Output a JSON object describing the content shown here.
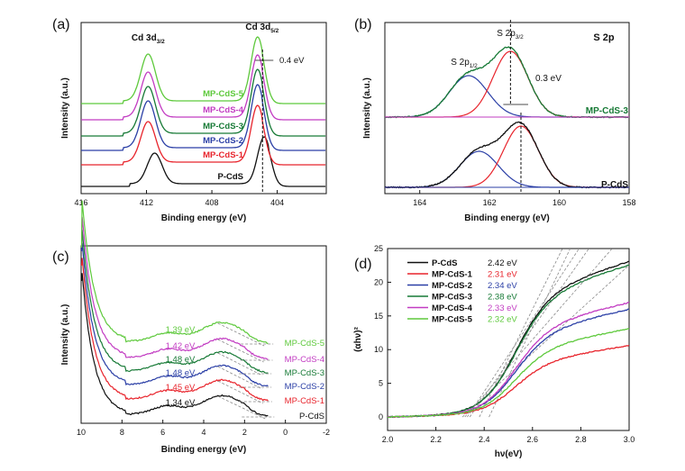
{
  "figure": {
    "colors": {
      "black": "#111111",
      "red": "#e8242c",
      "blue": "#2b3fa6",
      "darkgreen": "#177a36",
      "magenta": "#c23cc2",
      "lightgreen": "#5ec93c",
      "gray": "#777777"
    }
  },
  "chart_data": [
    {
      "panel": "(a)",
      "type": "line",
      "xlabel": "Binding energy (eV)",
      "ylabel": "Intensity (a.u.)",
      "xlim": [
        416,
        401
      ],
      "x_reversed": true,
      "xticks": [
        "416",
        "412",
        "408",
        "404"
      ],
      "xtick_values": [
        416,
        412,
        408,
        404
      ],
      "peaks": [
        {
          "label": "Cd 3d",
          "sub": "3/2",
          "position": 411.9
        },
        {
          "label": "Cd 3d",
          "sub": "5/2",
          "position": 405.2
        }
      ],
      "shift_label": "0.4 eV",
      "reference_line_x": 404.9,
      "series": [
        {
          "name": "P-CdS",
          "color": "#111111",
          "offset": 0,
          "peaks": [
            411.5,
            404.8
          ],
          "heights": [
            34,
            52
          ]
        },
        {
          "name": "MP-CdS-1",
          "color": "#e8242c",
          "offset": 24,
          "peaks": [
            411.9,
            405.2
          ],
          "heights": [
            45,
            63
          ]
        },
        {
          "name": "MP-CdS-2",
          "color": "#2b3fa6",
          "offset": 40,
          "peaks": [
            411.9,
            405.2
          ],
          "heights": [
            52,
            70
          ]
        },
        {
          "name": "MP-CdS-3",
          "color": "#177a36",
          "offset": 56,
          "peaks": [
            411.9,
            405.2
          ],
          "heights": [
            52,
            71
          ]
        },
        {
          "name": "MP-CdS-4",
          "color": "#c23cc2",
          "offset": 74,
          "peaks": [
            411.9,
            405.2
          ],
          "heights": [
            50,
            69
          ]
        },
        {
          "name": "MP-CdS-5",
          "color": "#5ec93c",
          "offset": 92,
          "peaks": [
            411.9,
            405.2
          ],
          "heights": [
            52,
            71
          ]
        }
      ]
    },
    {
      "panel": "(b)",
      "type": "line",
      "title": "S 2p",
      "xlabel": "Binding energy (eV)",
      "ylabel": "Intensity (a.u.)",
      "xlim": [
        165,
        158
      ],
      "x_reversed": true,
      "xticks": [
        "164",
        "162",
        "160",
        "158"
      ],
      "xtick_values": [
        164,
        162,
        160,
        158
      ],
      "annotations": [
        {
          "label": "S 2p",
          "sub": "1/2"
        },
        {
          "label": "S 2p",
          "sub": "3/2"
        }
      ],
      "shift_label": "0.3 eV",
      "series": [
        {
          "name": "MP-CdS-3",
          "color": "#177a36",
          "fit_peaks": [
            161.4,
            162.6
          ],
          "fit_heights": [
            73,
            46
          ]
        },
        {
          "name": "P-CdS",
          "color": "#111111",
          "fit_peaks": [
            161.1,
            162.3
          ],
          "fit_heights": [
            68,
            40
          ]
        }
      ],
      "fit_colors": {
        "S 2p3/2": "#e8242c",
        "S 2p1/2": "#2b3fa6",
        "baseline": "#c23cc2"
      }
    },
    {
      "panel": "(c)",
      "type": "line",
      "xlabel": "Binding energy (eV)",
      "ylabel": "Intensity (a.u.)",
      "xlim": [
        10,
        -2
      ],
      "x_reversed": true,
      "xticks": [
        "10",
        "8",
        "6",
        "4",
        "2",
        "0",
        "-2"
      ],
      "xtick_values": [
        10,
        8,
        6,
        4,
        2,
        0,
        -2
      ],
      "series": [
        {
          "name": "P-CdS",
          "color": "#111111",
          "value_label": "1.34 eV",
          "vbm": 1.34,
          "offset": 0
        },
        {
          "name": "MP-CdS-1",
          "color": "#e8242c",
          "value_label": "1.45 eV",
          "vbm": 1.45,
          "offset": 17
        },
        {
          "name": "MP-CdS-2",
          "color": "#2b3fa6",
          "value_label": "1.48 eV",
          "vbm": 1.48,
          "offset": 33
        },
        {
          "name": "MP-CdS-3",
          "color": "#177a36",
          "value_label": "1.48 eV",
          "vbm": 1.48,
          "offset": 48
        },
        {
          "name": "MP-CdS-4",
          "color": "#c23cc2",
          "value_label": "1.42 eV",
          "vbm": 1.42,
          "offset": 63
        },
        {
          "name": "MP-CdS-5",
          "color": "#5ec93c",
          "value_label": "1.39 eV",
          "vbm": 1.39,
          "offset": 81
        }
      ]
    },
    {
      "panel": "(d)",
      "type": "line",
      "xlabel": "hν(eV)",
      "ylabel": "(αhν)²",
      "xlim": [
        2.0,
        3.0
      ],
      "ylim": [
        -2,
        25
      ],
      "xticks": [
        "2.0",
        "2.2",
        "2.4",
        "2.6",
        "2.8",
        "3.0"
      ],
      "xtick_values": [
        2.0,
        2.2,
        2.4,
        2.6,
        2.8,
        3.0
      ],
      "yticks": [
        "0",
        "5",
        "10",
        "15",
        "20",
        "25"
      ],
      "ytick_values": [
        0,
        5,
        10,
        15,
        20,
        25
      ],
      "legend_position": "top-left",
      "series": [
        {
          "name": "P-CdS",
          "color": "#111111",
          "bandgap_label": "2.42 eV",
          "bandgap": 2.42,
          "end_value": 22.3
        },
        {
          "name": "MP-CdS-1",
          "color": "#e8242c",
          "bandgap_label": "2.31 eV",
          "bandgap": 2.31,
          "end_value": 9.8
        },
        {
          "name": "MP-CdS-2",
          "color": "#2b3fa6",
          "bandgap_label": "2.34 eV",
          "bandgap": 2.34,
          "end_value": 15.2
        },
        {
          "name": "MP-CdS-3",
          "color": "#177a36",
          "bandgap_label": "2.38 eV",
          "bandgap": 2.38,
          "end_value": 21.8
        },
        {
          "name": "MP-CdS-4",
          "color": "#c23cc2",
          "bandgap_label": "2.33 eV",
          "bandgap": 2.33,
          "end_value": 16.2
        },
        {
          "name": "MP-CdS-5",
          "color": "#5ec93c",
          "bandgap_label": "2.32 eV",
          "bandgap": 2.32,
          "end_value": 12.3
        }
      ]
    }
  ]
}
